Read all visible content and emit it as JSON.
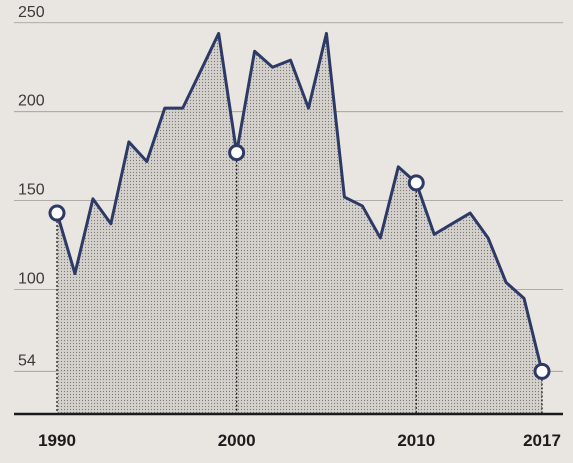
{
  "chart_data": {
    "type": "line",
    "title": "",
    "xlabel": "",
    "ylabel": "",
    "x": [
      1990,
      1991,
      1992,
      1993,
      1994,
      1995,
      1996,
      1997,
      1998,
      1999,
      2000,
      2001,
      2002,
      2003,
      2004,
      2005,
      2006,
      2007,
      2008,
      2009,
      2010,
      2011,
      2012,
      2013,
      2014,
      2015,
      2016,
      2017
    ],
    "series": [
      {
        "values": [
          143,
          109,
          151,
          137,
          183,
          172,
          202,
          202,
          223,
          244,
          177,
          234,
          225,
          229,
          202,
          244,
          152,
          147,
          129,
          169,
          160,
          131,
          137,
          143,
          129,
          104,
          95,
          54
        ],
        "color": "#2e3a66"
      }
    ],
    "xticks": [
      "1990",
      "2000",
      "2010",
      "2017"
    ],
    "yticks": [
      "250",
      "200",
      "150",
      "100",
      "54"
    ],
    "ylim": [
      30,
      260
    ],
    "highlighted_points": [
      1990,
      2000,
      2010,
      2017
    ],
    "grid": true,
    "legend": "none"
  }
}
